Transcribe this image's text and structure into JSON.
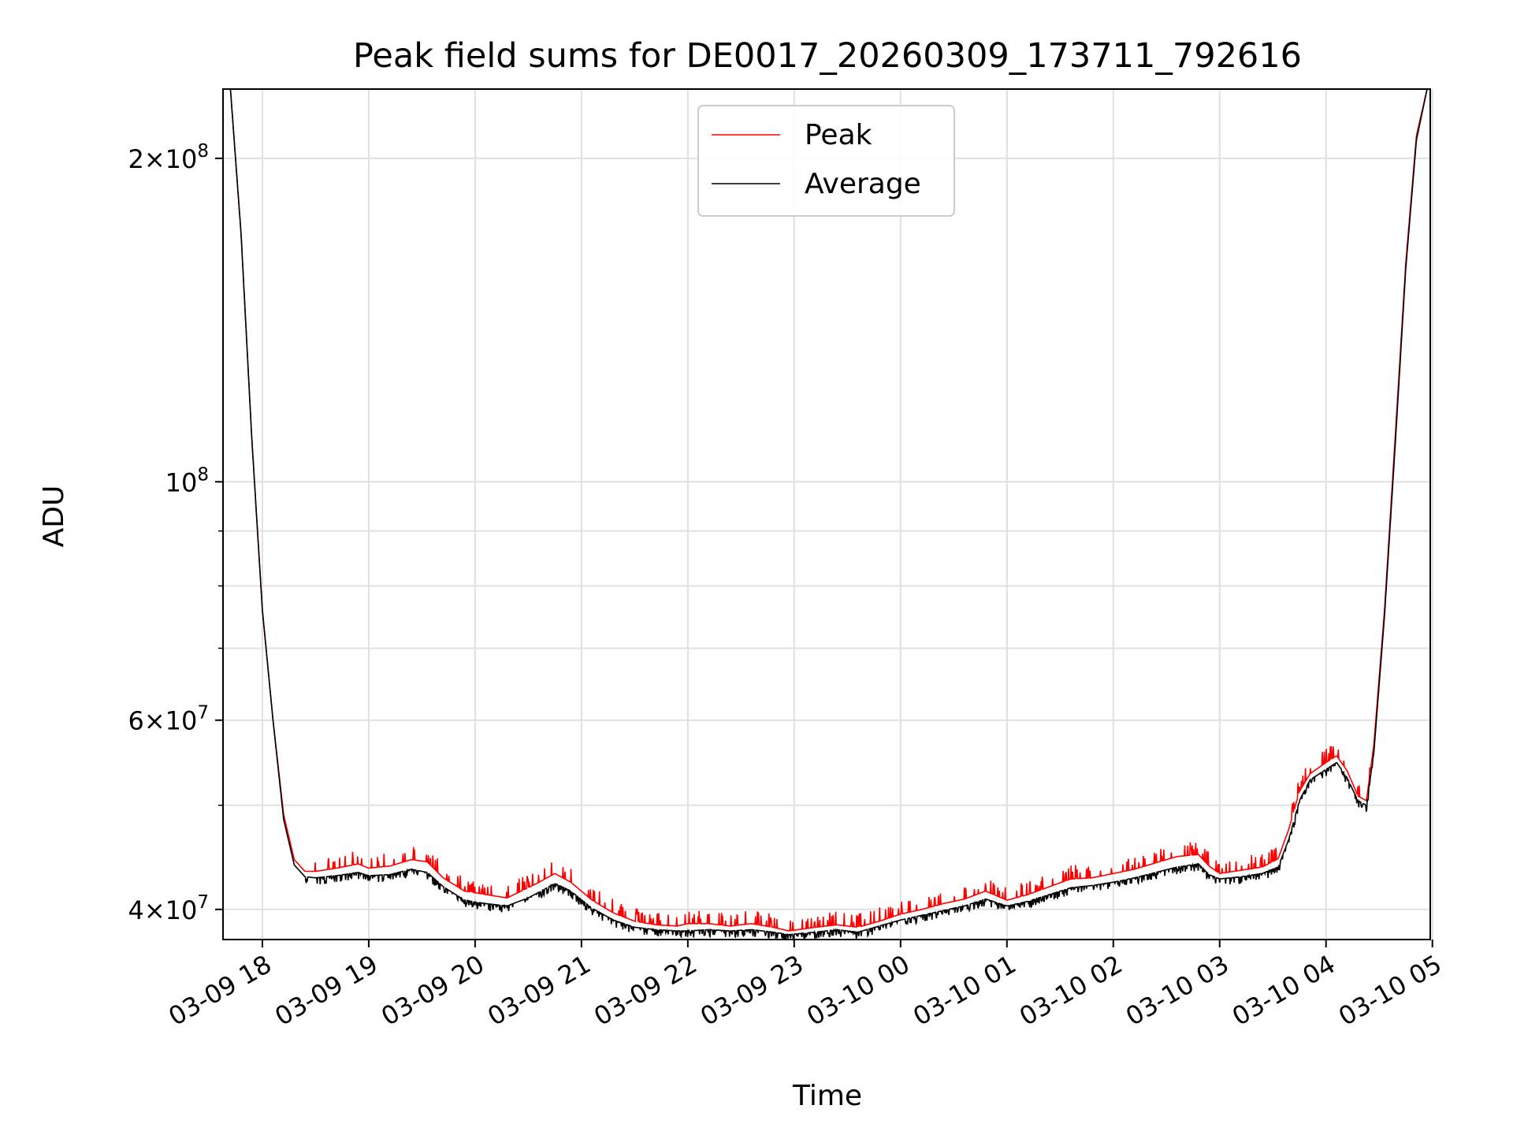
{
  "chart_data": {
    "type": "line",
    "title": "Peak field sums for DE0017_20260309_173711_792616",
    "xlabel": "Time",
    "ylabel": "ADU",
    "yscale": "log",
    "ylim": [
      37500000,
      232000000
    ],
    "xlim_hours_from_0309_1800": [
      -0.37,
      10.98
    ],
    "grid": true,
    "legend_position": "top-center",
    "x_tick_labels": [
      "03-09 18",
      "03-09 19",
      "03-09 20",
      "03-09 21",
      "03-09 22",
      "03-09 23",
      "03-10 00",
      "03-10 01",
      "03-10 02",
      "03-10 03",
      "03-10 04",
      "03-10 05"
    ],
    "x_tick_hours": [
      0,
      1,
      2,
      3,
      4,
      5,
      6,
      7,
      8,
      9,
      10,
      11
    ],
    "y_ticks": [
      {
        "value": 40000000,
        "mantissa": "4",
        "exponent": "7"
      },
      {
        "value": 60000000,
        "mantissa": "6",
        "exponent": "7"
      },
      {
        "value": 100000000,
        "mantissa": "",
        "exponent": "8"
      },
      {
        "value": 200000000,
        "mantissa": "2",
        "exponent": "8"
      }
    ],
    "y_minor_ticks": [
      50000000,
      70000000,
      80000000,
      90000000
    ],
    "series": [
      {
        "name": "Peak",
        "color": "#ff0000",
        "x_hours": [
          -0.3,
          -0.2,
          -0.1,
          0.0,
          0.1,
          0.2,
          0.3,
          0.4,
          0.5,
          0.7,
          0.9,
          1.0,
          1.2,
          1.4,
          1.55,
          1.7,
          1.9,
          2.1,
          2.3,
          2.5,
          2.6,
          2.75,
          2.9,
          3.1,
          3.3,
          3.5,
          3.7,
          3.9,
          4.0,
          4.2,
          4.4,
          4.6,
          4.8,
          4.95,
          5.2,
          5.4,
          5.6,
          5.8,
          6.0,
          6.2,
          6.4,
          6.6,
          6.8,
          7.0,
          7.2,
          7.4,
          7.6,
          7.8,
          8.0,
          8.2,
          8.4,
          8.6,
          8.8,
          8.9,
          9.0,
          9.2,
          9.4,
          9.55,
          9.65,
          9.75,
          9.85,
          10.0,
          10.1,
          10.2,
          10.3,
          10.38,
          10.45,
          10.55,
          10.65,
          10.75,
          10.85,
          10.95
        ],
        "values": [
          232000000,
          170000000,
          110000000,
          76000000,
          60000000,
          49000000,
          44500000,
          43400000,
          43400000,
          43700000,
          44100000,
          43700000,
          43900000,
          44500000,
          44300000,
          42800000,
          41600000,
          41300000,
          41000000,
          41900000,
          42400000,
          43200000,
          42400000,
          40800000,
          39700000,
          39000000,
          38700000,
          38600000,
          38800000,
          38800000,
          38600000,
          38800000,
          38500000,
          38200000,
          38500000,
          38700000,
          38500000,
          39000000,
          39600000,
          40000000,
          40500000,
          40900000,
          41600000,
          40800000,
          41300000,
          42000000,
          42700000,
          42800000,
          43200000,
          43600000,
          44200000,
          44800000,
          45000000,
          43900000,
          43200000,
          43500000,
          43800000,
          44600000,
          47500000,
          51500000,
          53500000,
          54800000,
          55600000,
          53800000,
          51000000,
          50500000,
          57000000,
          76000000,
          110000000,
          160000000,
          210000000,
          232000000
        ]
      },
      {
        "name": "Average",
        "color": "#000000",
        "x_hours": [
          -0.3,
          -0.2,
          -0.1,
          0.0,
          0.1,
          0.2,
          0.3,
          0.4,
          0.5,
          0.7,
          0.9,
          1.0,
          1.2,
          1.4,
          1.55,
          1.7,
          1.9,
          2.1,
          2.3,
          2.5,
          2.6,
          2.75,
          2.9,
          3.1,
          3.3,
          3.5,
          3.7,
          3.9,
          4.0,
          4.2,
          4.4,
          4.6,
          4.8,
          4.95,
          5.2,
          5.4,
          5.6,
          5.8,
          6.0,
          6.2,
          6.4,
          6.6,
          6.8,
          7.0,
          7.2,
          7.4,
          7.6,
          7.8,
          8.0,
          8.2,
          8.4,
          8.6,
          8.8,
          8.9,
          9.0,
          9.2,
          9.4,
          9.55,
          9.65,
          9.75,
          9.85,
          10.0,
          10.1,
          10.2,
          10.3,
          10.38,
          10.45,
          10.55,
          10.65,
          10.75,
          10.85,
          10.95
        ],
        "values": [
          232000000,
          170000000,
          110000000,
          76000000,
          60000000,
          48500000,
          44000000,
          42900000,
          42800000,
          43000000,
          43300000,
          43000000,
          43100000,
          43600000,
          43300000,
          42000000,
          40800000,
          40500000,
          40300000,
          41000000,
          41500000,
          42300000,
          41600000,
          40100000,
          39100000,
          38500000,
          38300000,
          38200000,
          38200000,
          38300000,
          38200000,
          38300000,
          38100000,
          37900000,
          38100000,
          38300000,
          38100000,
          38600000,
          39100000,
          39500000,
          39900000,
          40300000,
          40900000,
          40300000,
          40700000,
          41300000,
          41900000,
          42100000,
          42400000,
          42800000,
          43300000,
          43800000,
          44100000,
          43100000,
          42700000,
          42900000,
          43200000,
          43800000,
          46500000,
          50500000,
          52800000,
          54000000,
          54800000,
          53000000,
          50500000,
          50000000,
          56000000,
          75000000,
          108000000,
          158000000,
          208000000,
          232000000
        ]
      }
    ]
  }
}
